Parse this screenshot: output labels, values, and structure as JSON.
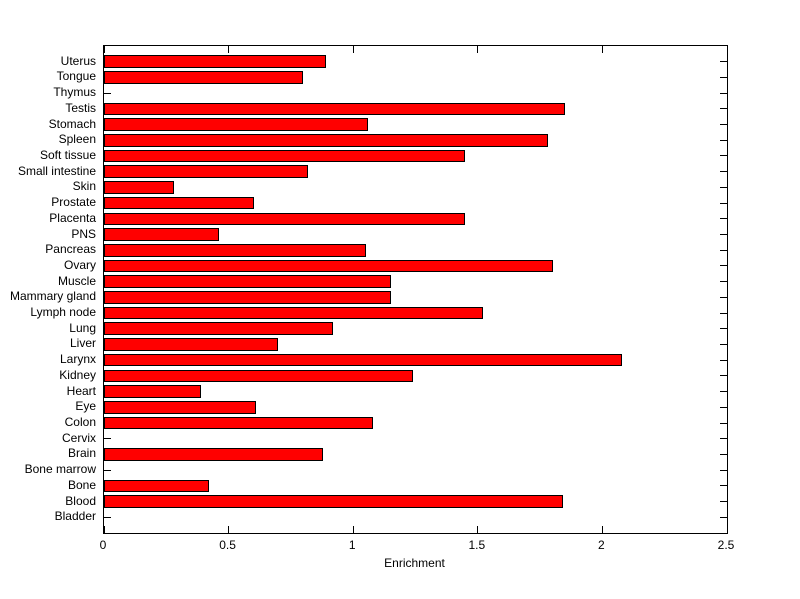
{
  "chart_data": {
    "type": "bar",
    "orientation": "horizontal",
    "title": "",
    "xlabel": "Enrichment",
    "ylabel": "",
    "xlim": [
      0,
      2.5
    ],
    "xticks": [
      0,
      0.5,
      1,
      1.5,
      2,
      2.5
    ],
    "xtick_labels": [
      "0",
      "0.5",
      "1",
      "1.5",
      "2",
      "2.5"
    ],
    "grid": false,
    "legend": "none",
    "bar_color": "#FF0000",
    "bar_edge_color": "#000000",
    "background_color": "#FFFFFF",
    "categories_order": "top-to-bottom",
    "categories": [
      "Uterus",
      "Tongue",
      "Thymus",
      "Testis",
      "Stomach",
      "Spleen",
      "Soft tissue",
      "Small intestine",
      "Skin",
      "Prostate",
      "Placenta",
      "PNS",
      "Pancreas",
      "Ovary",
      "Muscle",
      "Mammary gland",
      "Lymph node",
      "Lung",
      "Liver",
      "Larynx",
      "Kidney",
      "Heart",
      "Eye",
      "Colon",
      "Cervix",
      "Brain",
      "Bone marrow",
      "Bone",
      "Blood",
      "Bladder"
    ],
    "values": [
      0.89,
      0.8,
      0,
      1.85,
      1.06,
      1.78,
      1.45,
      0.82,
      0.28,
      0.6,
      1.45,
      0.46,
      1.05,
      1.8,
      1.15,
      1.15,
      1.52,
      0.92,
      0.7,
      2.08,
      1.24,
      0.39,
      0.61,
      1.08,
      0,
      0.88,
      0,
      0.42,
      1.84,
      0
    ]
  }
}
